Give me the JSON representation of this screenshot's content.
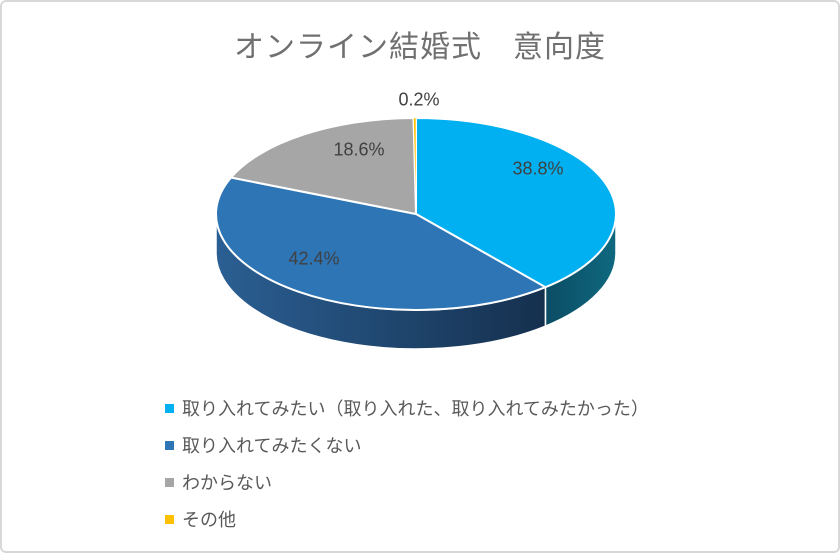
{
  "window": {
    "background": "#ffffff",
    "border_color": "#d8d8d8"
  },
  "chart_data": {
    "type": "pie",
    "style": "3d",
    "title": "オンライン結婚式　意向度",
    "title_color": "#707070",
    "data_label_color": "#404040",
    "legend_text_color": "#595959",
    "legend_position": "bottom-left",
    "start_angle_deg": 0,
    "clockwise": true,
    "unit": "%",
    "slices": [
      {
        "legend": "取り入れてみたい（取り入れた、取り入れてみたかった）",
        "value": 38.8,
        "label": "38.8%",
        "color": "#00b0f0",
        "side_gradient": [
          "#0b4c63",
          "#0f6980"
        ]
      },
      {
        "legend": "取り入れてみたくない",
        "value": 42.4,
        "label": "42.4%",
        "color": "#2e75b6",
        "side_gradient": [
          "#2b5f93",
          "#15304e"
        ]
      },
      {
        "legend": "わからない",
        "value": 18.6,
        "label": "18.6%",
        "color": "#a6a6a6"
      },
      {
        "legend": "その他",
        "value": 0.2,
        "label": "0.2%",
        "color": "#ffc000"
      }
    ]
  }
}
